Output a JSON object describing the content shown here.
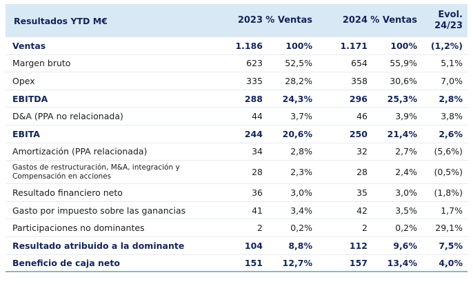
{
  "header": {
    "label": "Resultados YTD M€",
    "col_2023": "2023",
    "col_pct_2023": "% Ventas",
    "col_2024": "2024",
    "col_pct_2024": "% Ventas",
    "col_evol": "Evol. 24/23"
  },
  "rows": [
    {
      "label": "Ventas",
      "v2023": "1.186",
      "p2023": "100%",
      "v2024": "1.171",
      "p2024": "100%",
      "evol": "(1,2%)"
    },
    {
      "label": "Margen bruto",
      "v2023": "623",
      "p2023": "52,5%",
      "v2024": "654",
      "p2024": "55,9%",
      "evol": "5,1%"
    },
    {
      "label": "Opex",
      "v2023": "335",
      "p2023": "28,2%",
      "v2024": "358",
      "p2024": "30,6%",
      "evol": "7,0%"
    },
    {
      "label": "EBITDA",
      "v2023": "288",
      "p2023": "24,3%",
      "v2024": "296",
      "p2024": "25,3%",
      "evol": "2,8%"
    },
    {
      "label": "D&A (PPA no relacionada)",
      "v2023": "44",
      "p2023": "3,7%",
      "v2024": "46",
      "p2024": "3,9%",
      "evol": "3,8%"
    },
    {
      "label": "EBITA",
      "v2023": "244",
      "p2023": "20,6%",
      "v2024": "250",
      "p2024": "21,4%",
      "evol": "2,6%"
    },
    {
      "label": "Amortización (PPA relacionada)",
      "v2023": "34",
      "p2023": "2,8%",
      "v2024": "32",
      "p2024": "2,7%",
      "evol": "(5,6%)"
    },
    {
      "label_line1": "Gastos de restructuración, M&A, integración y",
      "label_line2": "Compensación en acciones",
      "v2023": "28",
      "p2023": "2,3%",
      "v2024": "28",
      "p2024": "2,4%",
      "evol": "(0,5%)"
    },
    {
      "label": "Resultado financiero neto",
      "v2023": "36",
      "p2023": "3,0%",
      "v2024": "35",
      "p2024": "3,0%",
      "evol": "(1,8%)"
    },
    {
      "label": "Gasto por impuesto sobre las ganancias",
      "v2023": "41",
      "p2023": "3,4%",
      "v2024": "42",
      "p2024": "3,5%",
      "evol": "1,7%"
    },
    {
      "label": "Participaciones no dominantes",
      "v2023": "2",
      "p2023": "0,2%",
      "v2024": "2",
      "p2024": "0,2%",
      "evol": "29,1%"
    },
    {
      "label": "Resultado atribuido a la dominante",
      "v2023": "104",
      "p2023": "8,8%",
      "v2024": "112",
      "p2024": "9,6%",
      "evol": "7,5%"
    },
    {
      "label": "Beneficio de caja neto",
      "v2023": "151",
      "p2023": "12,7%",
      "v2024": "157",
      "p2024": "13,4%",
      "evol": "4,0%"
    }
  ]
}
